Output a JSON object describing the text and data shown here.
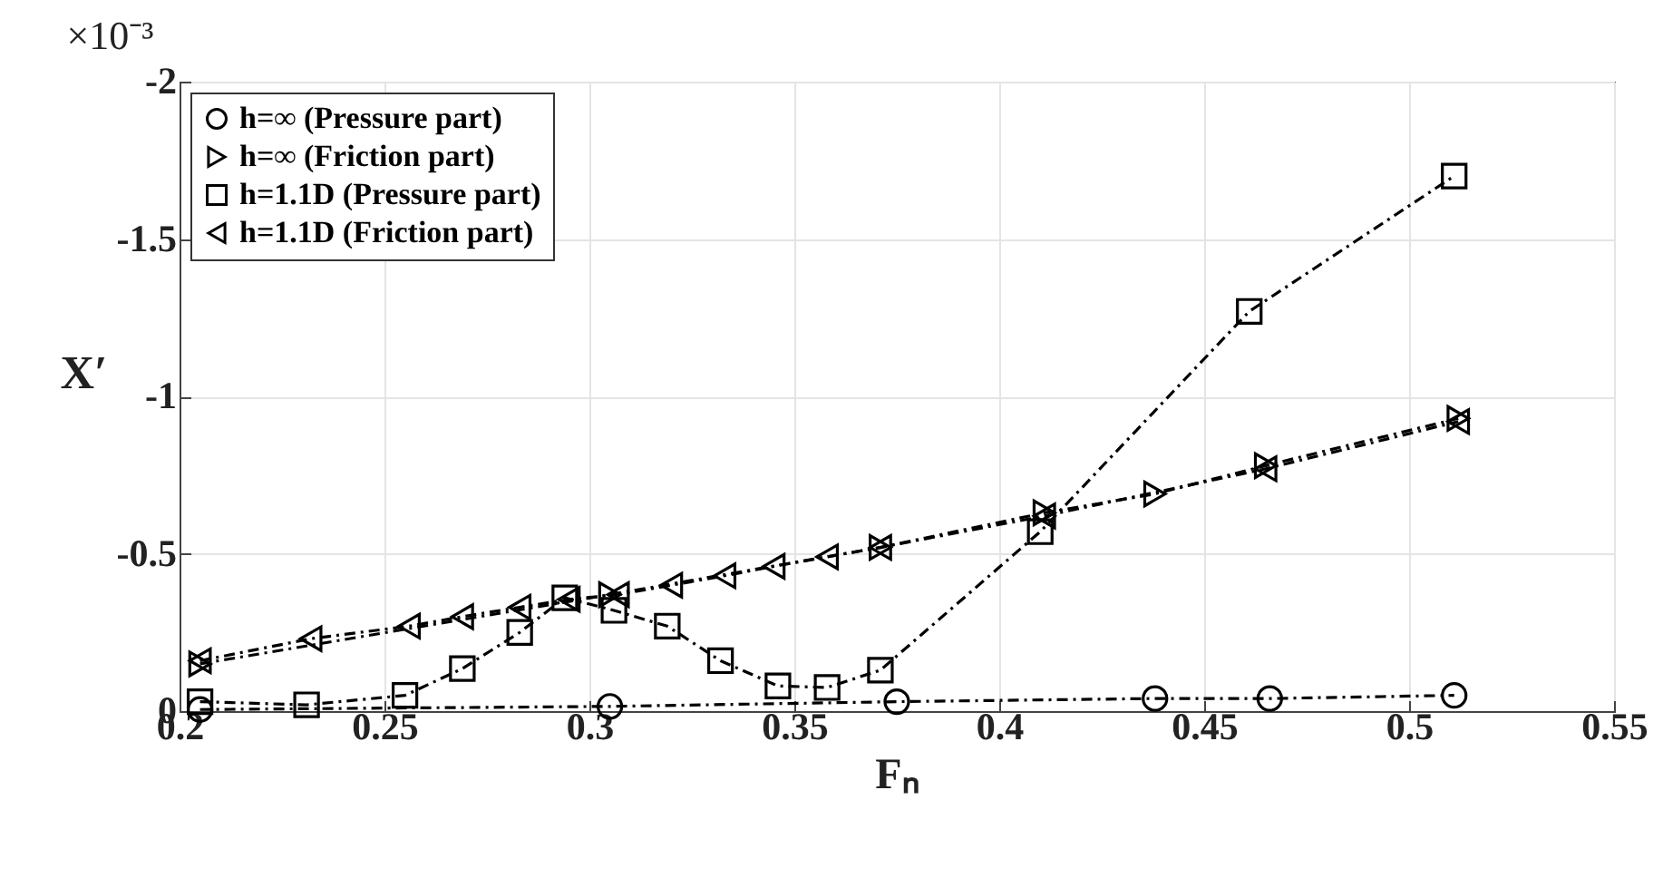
{
  "chart_data": {
    "type": "line",
    "xlabel": "Fₙ",
    "ylabel": "X′",
    "annotations": [
      "×10⁻³"
    ],
    "xlim": [
      0.2,
      0.55
    ],
    "xticks": [
      0.2,
      0.25,
      0.3,
      0.35,
      0.4,
      0.45,
      0.5,
      0.55
    ],
    "ylim": [
      0,
      -2
    ],
    "yticks": [
      0,
      -0.5,
      -1,
      -1.5,
      -2
    ],
    "grid": true,
    "legend": "top left",
    "line_style": "dashed",
    "series": [
      {
        "name": "h=∞ (Pressure part)",
        "color": "#000000",
        "marker": "circle",
        "x": [
          0.205,
          0.305,
          0.375,
          0.438,
          0.466,
          0.511
        ],
        "values": [
          -0.005,
          -0.015,
          -0.03,
          -0.04,
          -0.04,
          -0.05
        ]
      },
      {
        "name": "h=∞ (Friction part)",
        "color": "#000000",
        "marker": "triangle-right",
        "x": [
          0.205,
          0.305,
          0.371,
          0.411,
          0.438,
          0.465,
          0.512
        ],
        "values": [
          -0.15,
          -0.37,
          -0.52,
          -0.63,
          -0.69,
          -0.78,
          -0.93
        ]
      },
      {
        "name": "h=1.1D (Pressure part)",
        "color": "#000000",
        "marker": "square",
        "x": [
          0.205,
          0.231,
          0.255,
          0.269,
          0.283,
          0.294,
          0.306,
          0.319,
          0.332,
          0.346,
          0.358,
          0.371,
          0.41,
          0.461,
          0.511
        ],
        "values": [
          -0.03,
          -0.02,
          -0.05,
          -0.135,
          -0.25,
          -0.36,
          -0.32,
          -0.27,
          -0.16,
          -0.08,
          -0.075,
          -0.13,
          -0.57,
          -1.27,
          -1.7
        ]
      },
      {
        "name": "h=1.1D (Friction part)",
        "color": "#000000",
        "marker": "triangle-left",
        "x": [
          0.205,
          0.232,
          0.256,
          0.269,
          0.283,
          0.295,
          0.307,
          0.32,
          0.333,
          0.345,
          0.358,
          0.371,
          0.411,
          0.465,
          0.512
        ],
        "values": [
          -0.16,
          -0.23,
          -0.27,
          -0.3,
          -0.33,
          -0.355,
          -0.37,
          -0.4,
          -0.43,
          -0.46,
          -0.49,
          -0.52,
          -0.62,
          -0.77,
          -0.92
        ]
      }
    ]
  }
}
